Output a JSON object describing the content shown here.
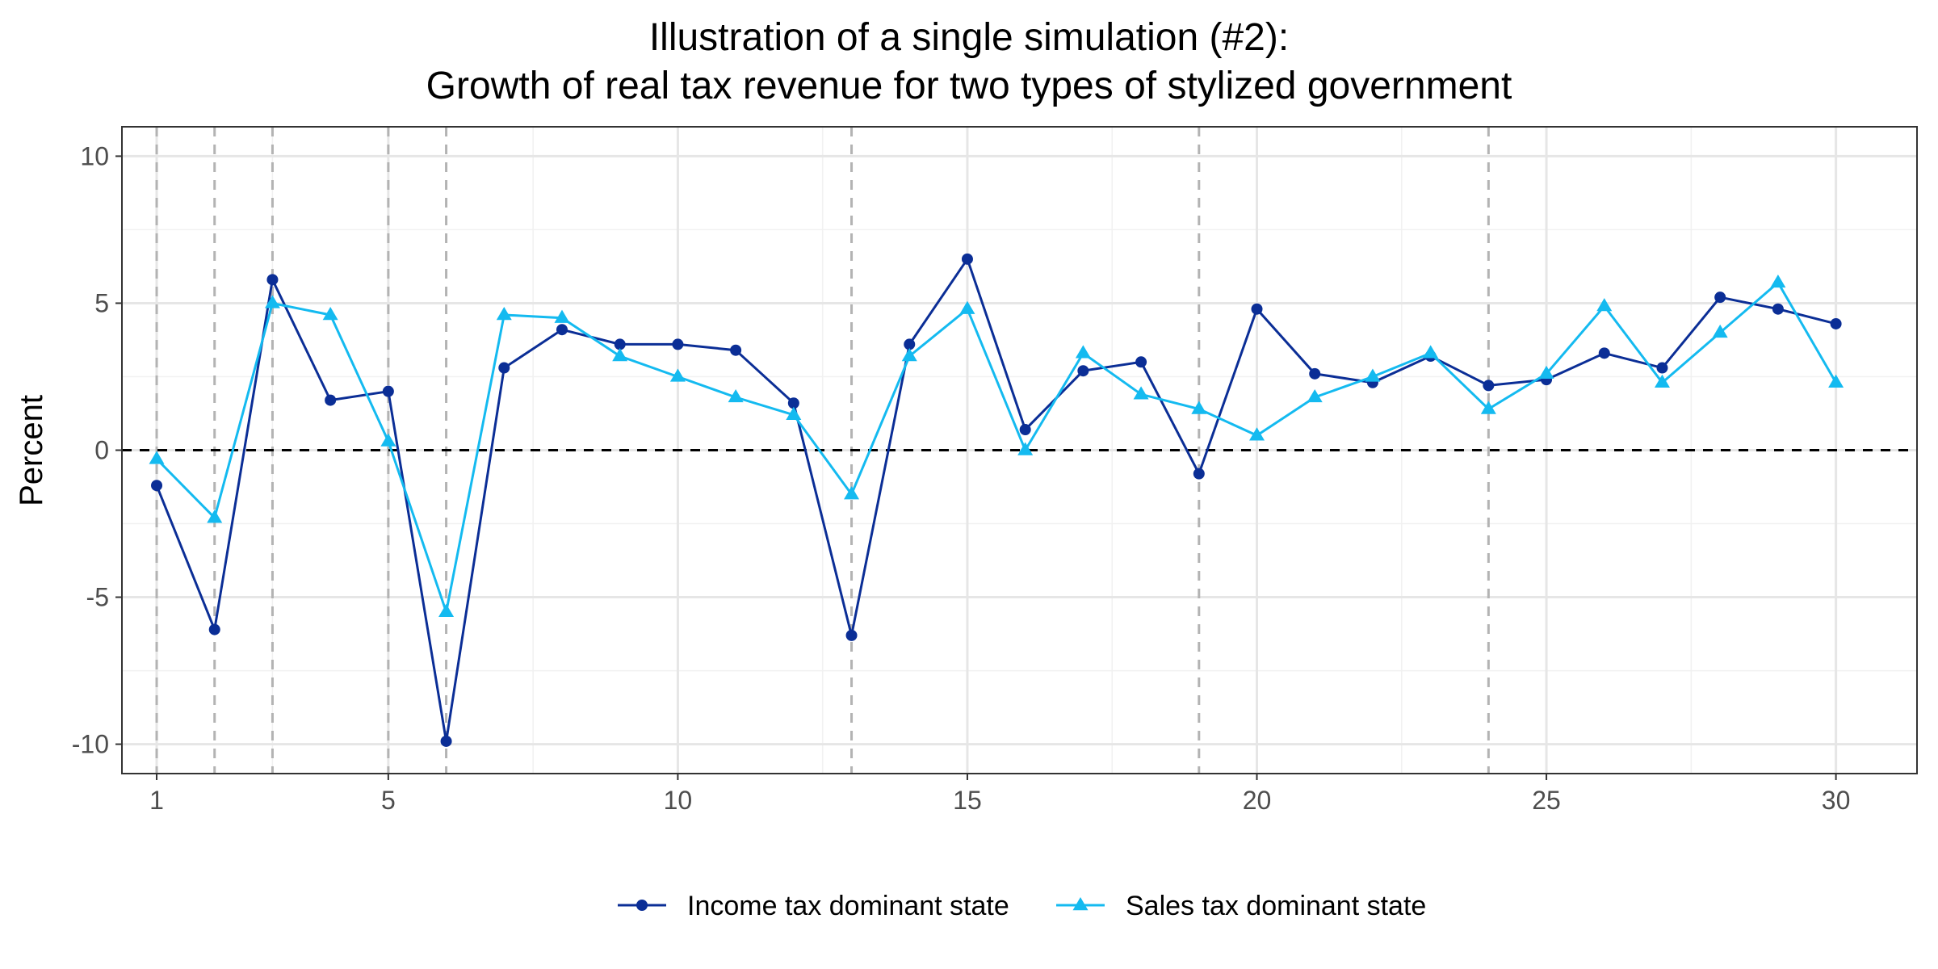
{
  "chart_data": {
    "type": "line",
    "title": "Illustration of a single simulation (#2):",
    "subtitle": "Growth of real tax revenue for two types of stylized government",
    "xlabel": "",
    "ylabel": "Percent",
    "xlim": [
      0.4,
      31.4
    ],
    "ylim": [
      -11,
      11
    ],
    "x_ticks": [
      1,
      5,
      10,
      15,
      20,
      25,
      30
    ],
    "x_tick_labels": [
      "1",
      "5",
      "10",
      "15",
      "20",
      "25",
      "30"
    ],
    "y_ticks": [
      -10,
      -5,
      0,
      5,
      10
    ],
    "y_tick_labels": [
      "-10",
      "-5",
      "0",
      "5",
      "10"
    ],
    "grid": true,
    "legend_position": "bottom",
    "reference_line_y": 0,
    "recession_markers_x": [
      1,
      2,
      3,
      5,
      6,
      13,
      19,
      24
    ],
    "x": [
      1,
      2,
      3,
      4,
      5,
      6,
      7,
      8,
      9,
      10,
      11,
      12,
      13,
      14,
      15,
      16,
      17,
      18,
      19,
      20,
      21,
      22,
      23,
      24,
      25,
      26,
      27,
      28,
      29,
      30
    ],
    "series": [
      {
        "name": "Income tax dominant state",
        "color": "#0b2e96",
        "marker": "circle",
        "values": [
          -1.2,
          -6.1,
          5.8,
          1.7,
          2.0,
          -9.9,
          2.8,
          4.1,
          3.6,
          3.6,
          3.4,
          1.6,
          -6.3,
          3.6,
          6.5,
          0.7,
          2.7,
          3.0,
          -0.8,
          4.8,
          2.6,
          2.3,
          3.2,
          2.2,
          2.4,
          3.3,
          2.8,
          5.2,
          4.8,
          4.3
        ]
      },
      {
        "name": "Sales tax dominant state",
        "color": "#14baf0",
        "marker": "triangle",
        "values": [
          -0.3,
          -2.3,
          5.0,
          4.6,
          0.3,
          -5.5,
          4.6,
          4.5,
          3.2,
          2.5,
          1.8,
          1.2,
          -1.5,
          3.2,
          4.8,
          0.0,
          3.3,
          1.9,
          1.4,
          0.5,
          1.8,
          2.5,
          3.3,
          1.4,
          2.6,
          4.9,
          2.3,
          4.0,
          5.7,
          2.3
        ]
      }
    ]
  }
}
